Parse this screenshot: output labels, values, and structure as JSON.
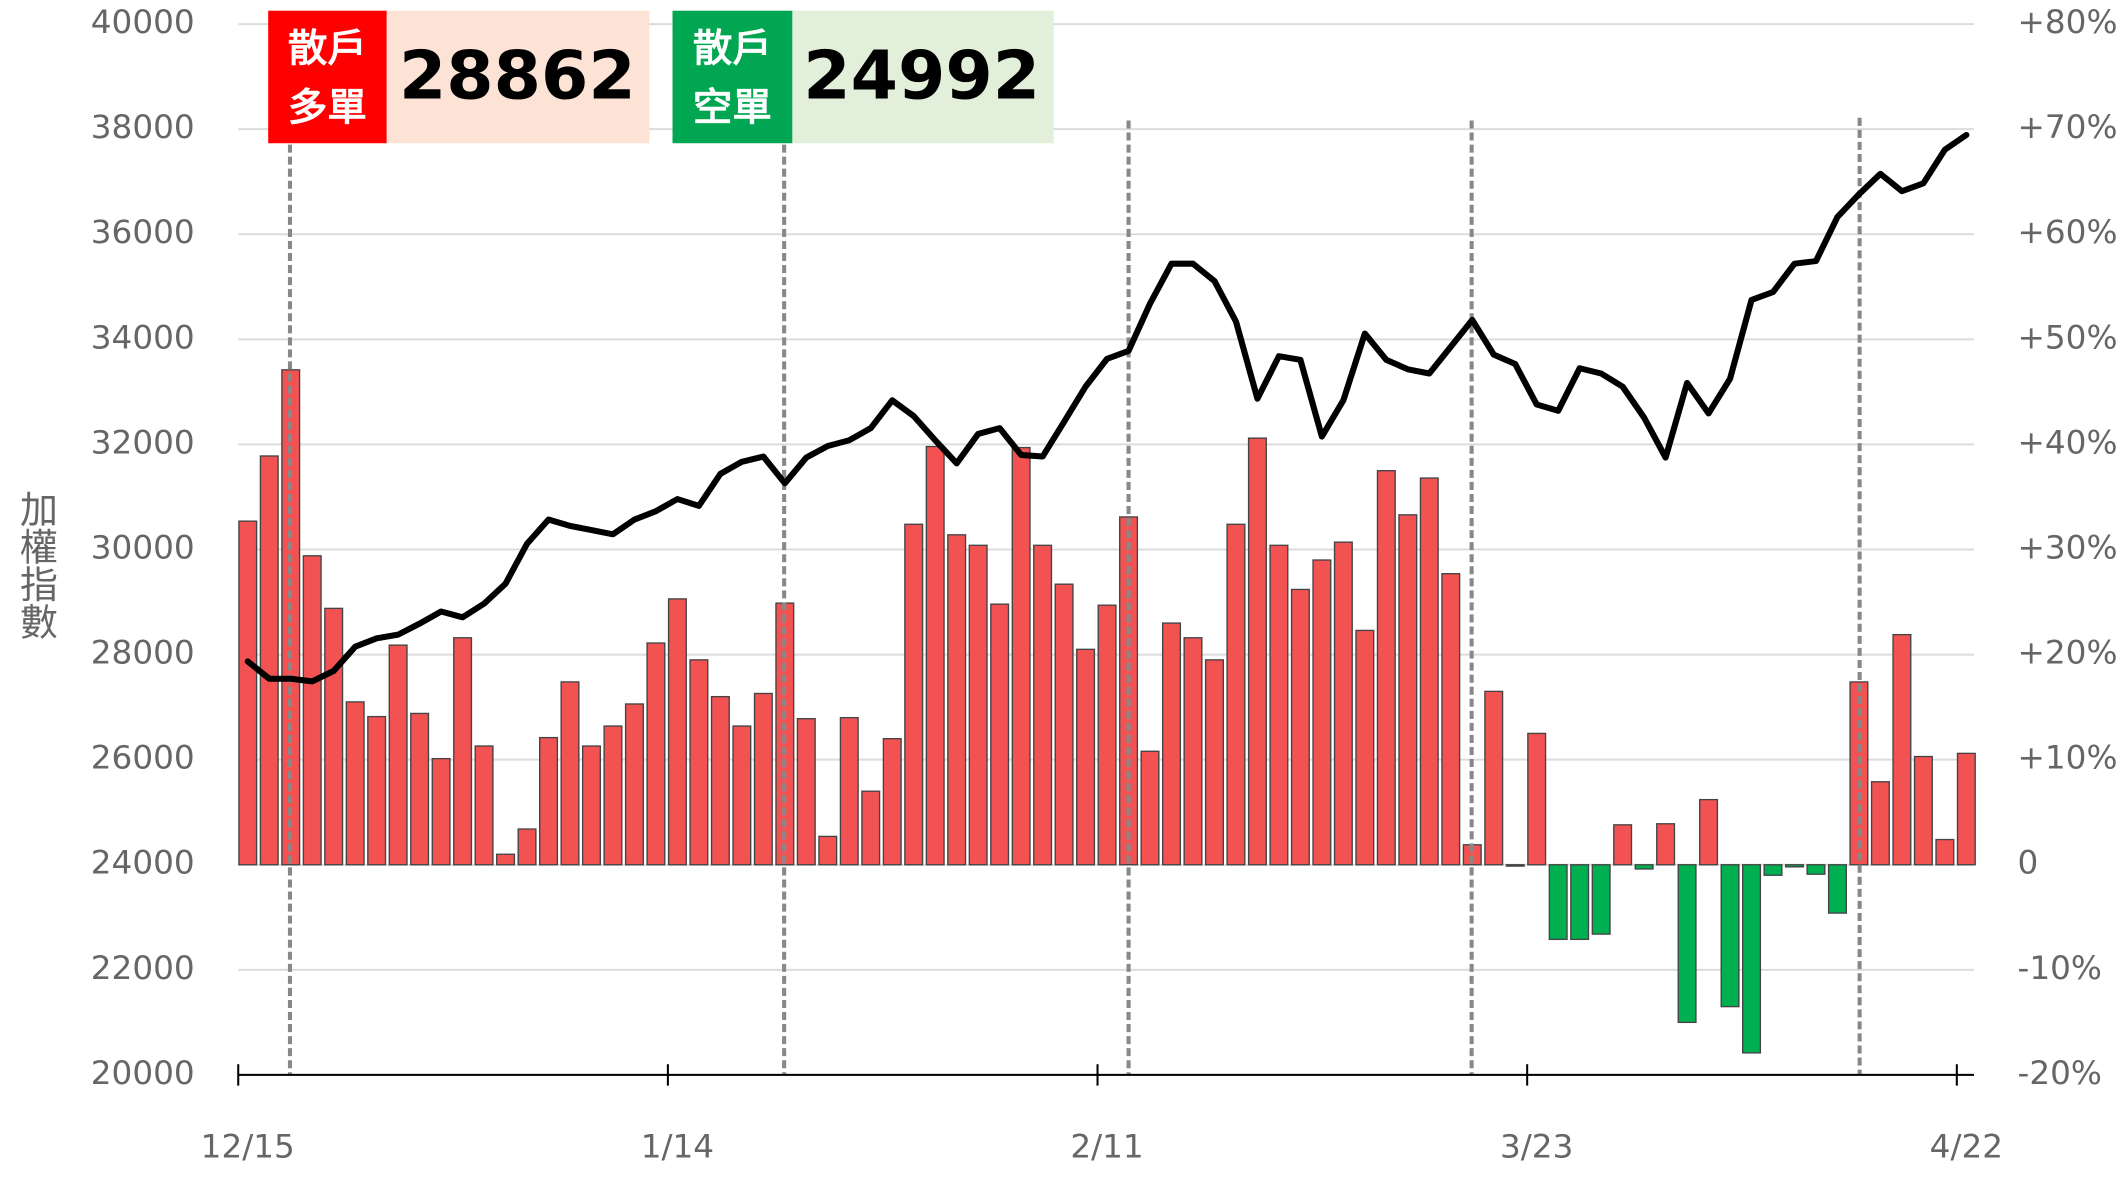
{
  "chart_data": {
    "type": "combo",
    "y_axis_label": "加權指數",
    "categories": [
      "12/15",
      null,
      null,
      null,
      null,
      null,
      null,
      null,
      null,
      null,
      null,
      null,
      null,
      null,
      null,
      null,
      null,
      null,
      null,
      null,
      "1/14",
      null,
      null,
      null,
      null,
      null,
      null,
      null,
      null,
      null,
      null,
      null,
      null,
      null,
      null,
      null,
      null,
      null,
      null,
      null,
      "2/11",
      null,
      null,
      null,
      null,
      null,
      null,
      null,
      null,
      null,
      null,
      null,
      null,
      null,
      null,
      null,
      null,
      null,
      null,
      null,
      "3/23",
      null,
      null,
      null,
      null,
      null,
      null,
      null,
      null,
      null,
      null,
      null,
      null,
      null,
      null,
      null,
      null,
      null,
      null,
      null,
      "4/22"
    ],
    "ylim": [
      20000,
      40000
    ],
    "yticks": [
      20000,
      22000,
      24000,
      26000,
      28000,
      30000,
      32000,
      34000,
      36000,
      38000,
      40000
    ],
    "y2lim": [
      -20,
      80
    ],
    "y2ticks": [
      {
        "value": -20,
        "label": "-20%"
      },
      {
        "value": -10,
        "label": "-10%"
      },
      0,
      {
        "value": 10,
        "label": "+10%"
      },
      {
        "value": 20,
        "label": "+20%"
      },
      {
        "value": 30,
        "label": "+30%"
      },
      {
        "value": 40,
        "label": "+40%"
      },
      {
        "value": 50,
        "label": "+50%"
      },
      {
        "value": 60,
        "label": "+60%"
      },
      {
        "value": 70,
        "label": "+70%"
      },
      {
        "value": 80,
        "label": "+80%"
      }
    ],
    "grid": true,
    "series": [
      {
        "type": "bar",
        "axis": "y2",
        "color": "#f25252",
        "negative_color": "#00b050",
        "values": [
          32.7,
          38.9,
          47.1,
          29.4,
          24.4,
          15.5,
          14.1,
          20.9,
          14.4,
          10.1,
          21.6,
          11.3,
          1.0,
          3.4,
          12.1,
          17.4,
          11.3,
          13.2,
          15.3,
          21.1,
          25.3,
          19.5,
          16.0,
          13.2,
          16.3,
          24.9,
          13.9,
          2.7,
          14.0,
          7.0,
          12.0,
          32.4,
          39.8,
          31.4,
          30.4,
          24.8,
          39.7,
          30.4,
          26.7,
          20.5,
          24.7,
          33.1,
          10.8,
          23.0,
          21.6,
          19.5,
          32.4,
          40.6,
          30.4,
          26.2,
          29.0,
          30.7,
          22.3,
          37.5,
          33.3,
          36.8,
          27.7,
          1.9,
          16.5,
          -0.1,
          12.5,
          -7.1,
          -7.1,
          -6.6,
          3.8,
          -0.4,
          3.9,
          -15.0,
          6.2,
          -13.5,
          -17.9,
          -1.0,
          -0.2,
          -0.9,
          -4.6,
          17.4,
          7.9,
          21.9,
          10.3,
          2.4,
          10.6
        ]
      },
      {
        "type": "line",
        "color": "#000000",
        "values": [
          27870,
          27540,
          27540,
          27490,
          27690,
          28150,
          28310,
          28380,
          28590,
          28820,
          28710,
          28970,
          29350,
          30110,
          30570,
          30450,
          30370,
          30290,
          30570,
          30730,
          30960,
          30830,
          31440,
          31670,
          31770,
          31260,
          31750,
          31970,
          32080,
          32310,
          32840,
          32540,
          32080,
          31640,
          32200,
          32310,
          31800,
          31770,
          32430,
          33100,
          33630,
          33780,
          34680,
          35440,
          35440,
          35110,
          34340,
          32870,
          33680,
          33610,
          32150,
          32840,
          34110,
          33610,
          33430,
          33350,
          33860,
          34370,
          33710,
          33530,
          32760,
          32640,
          33450,
          33350,
          33100,
          32510,
          31750,
          33170,
          32590,
          33250,
          34750,
          34900,
          35440,
          35490,
          36330,
          36760,
          37150,
          36820,
          36970,
          37610,
          37890
        ]
      }
    ],
    "badges": [
      {
        "label": [
          "散戶",
          "多單"
        ],
        "value": 28862,
        "color": "#ff0000",
        "background": "#fde3d6"
      },
      {
        "label": [
          "散戶",
          "空單"
        ],
        "value": 24992,
        "color": "#00a651",
        "background": "#e2efda"
      }
    ]
  }
}
